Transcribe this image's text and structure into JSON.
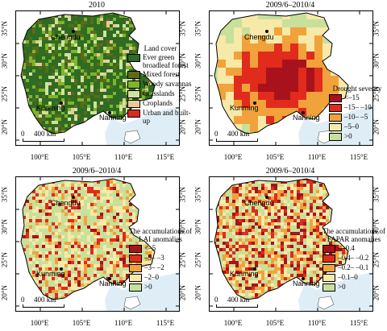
{
  "panels": [
    {
      "title": "2010",
      "legend": {
        "title": "Land cover",
        "items": [
          {
            "label": "Ever green broadleaf forest",
            "color": "#2f6b23"
          },
          {
            "label": "Mixed forest",
            "color": "#5a6b1a"
          },
          {
            "label": "Woody savannas",
            "color": "#7fb52b"
          },
          {
            "label": "Grasslands",
            "color": "#cfe3a0"
          },
          {
            "label": "Croplands",
            "color": "#e8c99a"
          },
          {
            "label": "Urban and built-up",
            "color": "#d92b1f"
          }
        ]
      }
    },
    {
      "title": "2009/6–2010/4",
      "legend": {
        "title": "Drought severity",
        "items": [
          {
            "label": "<–15",
            "color": "#a8121c"
          },
          {
            "label": "–15– –10",
            "color": "#e02b1d"
          },
          {
            "label": "–10– –5",
            "color": "#f2a23a"
          },
          {
            "label": "–5–0",
            "color": "#f7e9a8"
          },
          {
            "label": ">0",
            "color": "#c7e09a"
          }
        ]
      }
    },
    {
      "title": "2009/6–2010/4",
      "legend": {
        "title": "The accumulations of LAI anomalies",
        "items": [
          {
            "label": "<–5",
            "color": "#a8121c"
          },
          {
            "label": "–5– –3",
            "color": "#e02b1d"
          },
          {
            "label": "–3– –2",
            "color": "#f2a23a"
          },
          {
            "label": "–2–0",
            "color": "#f7e9a8"
          },
          {
            "label": ">0",
            "color": "#c7e09a"
          }
        ]
      }
    },
    {
      "title": "2009/6–2010/4",
      "legend": {
        "title": "The accumulations of FAPAR anomalies",
        "items": [
          {
            "label": "<–0.4",
            "color": "#a8121c"
          },
          {
            "label": "–0.4– –0.2",
            "color": "#e02b1d"
          },
          {
            "label": "–0.2– –0.1",
            "color": "#f2a23a"
          },
          {
            "label": "–0.1–0",
            "color": "#f7e9a8"
          },
          {
            "label": ">0",
            "color": "#c7e09a"
          }
        ]
      }
    }
  ],
  "cities": {
    "chengdu": "Chengdu",
    "kunming": "Kunming",
    "nanning": "Nanning"
  },
  "lat_labels": [
    "35°N",
    "30°N",
    "25°N",
    "20°N"
  ],
  "lon_labels": [
    "100°E",
    "105°E",
    "110°E",
    "115°E"
  ],
  "scale": {
    "zero": "0",
    "distance": "400 km"
  },
  "colors": {
    "sea": "#dfeef6",
    "outside": "#ffffff"
  }
}
